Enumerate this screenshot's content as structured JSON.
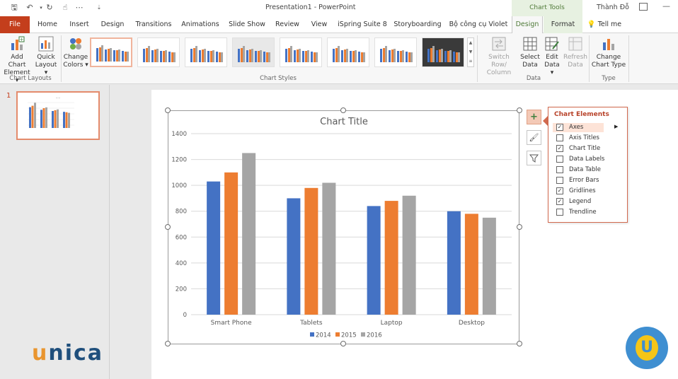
{
  "window": {
    "title": "Presentation1  -  PowerPoint",
    "context_group": "Chart Tools",
    "user": "Thành Đỗ"
  },
  "tabs": [
    {
      "label": "File"
    },
    {
      "label": "Home"
    },
    {
      "label": "Insert"
    },
    {
      "label": "Design"
    },
    {
      "label": "Transitions"
    },
    {
      "label": "Animations"
    },
    {
      "label": "Slide Show"
    },
    {
      "label": "Review"
    },
    {
      "label": "View"
    },
    {
      "label": "iSpring Suite 8"
    },
    {
      "label": "Storyboarding"
    },
    {
      "label": "Bộ công cụ Violet"
    },
    {
      "label": "Design"
    },
    {
      "label": "Format"
    },
    {
      "label": "Tell me"
    }
  ],
  "ribbon": {
    "add_chart_element": {
      "line1": "Add Chart",
      "line2": "Element ▾"
    },
    "quick_layout": {
      "line1": "Quick",
      "line2": "Layout ▾"
    },
    "chart_layouts_label": "Chart Layouts",
    "change_colors": {
      "line1": "Change",
      "line2": "Colors ▾"
    },
    "chart_styles_label": "Chart Styles",
    "switch_row_column": {
      "line1": "Switch Row/",
      "line2": "Column"
    },
    "select_data": {
      "line1": "Select",
      "line2": "Data"
    },
    "edit_data": {
      "line1": "Edit",
      "line2": "Data ▾"
    },
    "refresh_data": {
      "line1": "Refresh",
      "line2": "Data"
    },
    "data_label": "Data",
    "change_chart_type": {
      "line1": "Change",
      "line2": "Chart Type"
    },
    "type_label": "Type"
  },
  "thumbnails": {
    "slide_number": "1"
  },
  "chart_data": {
    "type": "bar",
    "title": "Chart Title",
    "categories": [
      "Smart Phone",
      "Tablets",
      "Laptop",
      "Desktop"
    ],
    "series": [
      {
        "name": "2014",
        "values": [
          1030,
          900,
          840,
          800
        ],
        "color": "#4472c4"
      },
      {
        "name": "2015",
        "values": [
          1100,
          980,
          880,
          780
        ],
        "color": "#ed7d31"
      },
      {
        "name": "2016",
        "values": [
          1250,
          1020,
          920,
          750
        ],
        "color": "#a5a5a5"
      }
    ],
    "yticks": [
      "0",
      "200",
      "400",
      "600",
      "800",
      "1000",
      "1200",
      "1400"
    ],
    "ylim": [
      0,
      1400
    ],
    "grid": true,
    "legend": "bottom"
  },
  "chart_elements": {
    "title": "Chart Elements",
    "items": [
      {
        "label": "Axes",
        "checked": true
      },
      {
        "label": "Axis Titles",
        "checked": false
      },
      {
        "label": "Chart Title",
        "checked": true
      },
      {
        "label": "Data Labels",
        "checked": false
      },
      {
        "label": "Data Table",
        "checked": false
      },
      {
        "label": "Error Bars",
        "checked": false
      },
      {
        "label": "Gridlines",
        "checked": true
      },
      {
        "label": "Legend",
        "checked": true
      },
      {
        "label": "Trendline",
        "checked": false
      }
    ]
  },
  "logo": {
    "text_u": "u",
    "text_rest": "nica",
    "badge_letter": "U"
  }
}
